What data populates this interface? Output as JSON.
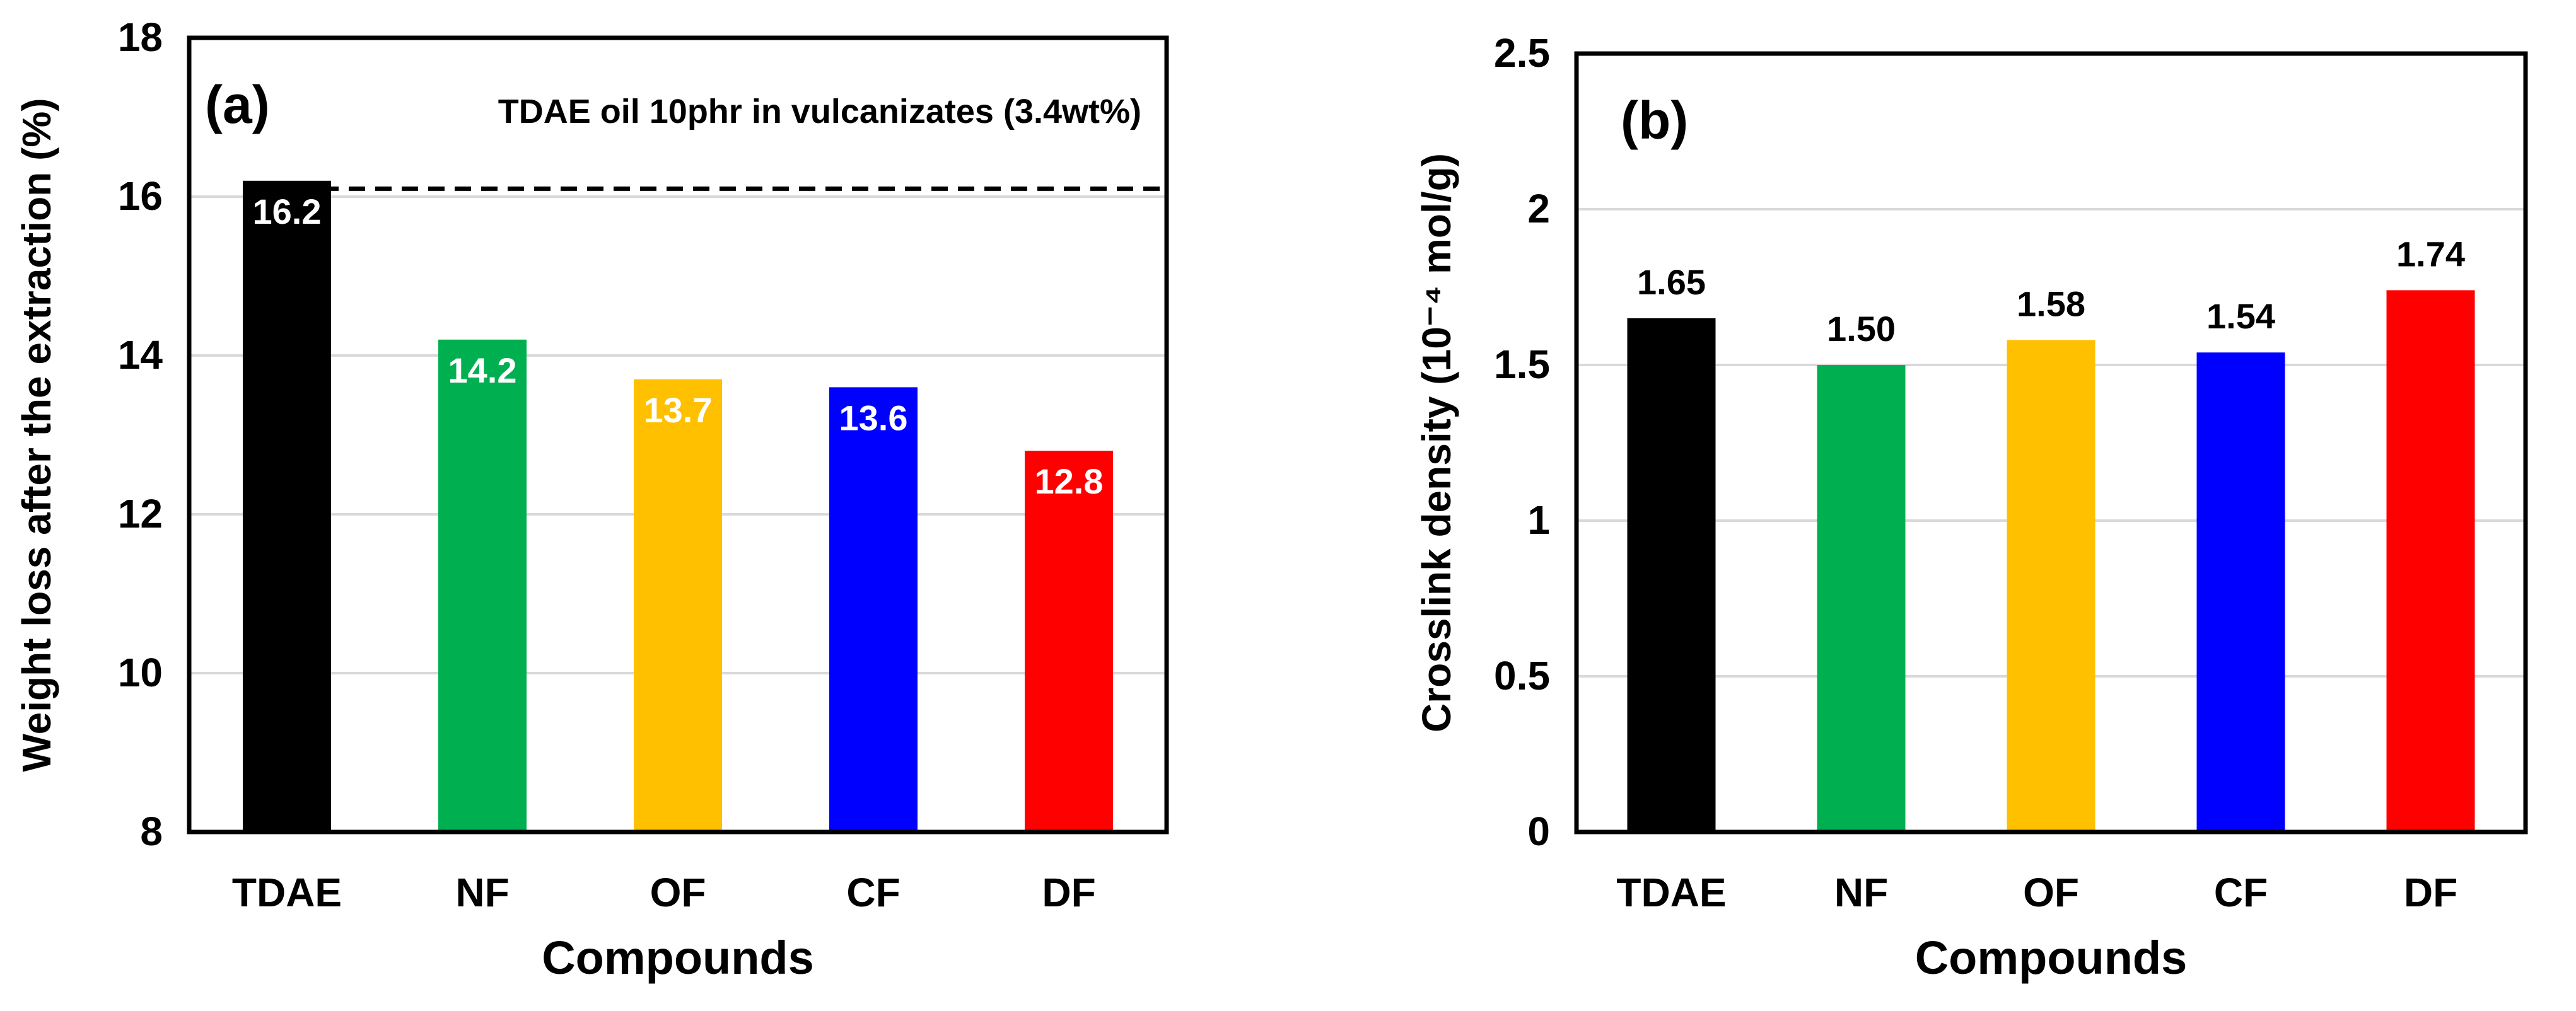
{
  "chart_data": [
    {
      "type": "bar",
      "panel_label": "(a)",
      "annotation": "TDAE oil 10phr in vulcanizates (3.4wt%)",
      "reference_line": {
        "value": 16.1,
        "style": "dashed"
      },
      "categories": [
        "TDAE",
        "NF",
        "OF",
        "CF",
        "DF"
      ],
      "values": [
        16.2,
        14.2,
        13.7,
        13.6,
        12.8
      ],
      "value_labels": [
        "16.2",
        "14.2",
        "13.7",
        "13.6",
        "12.8"
      ],
      "value_label_position": "inside-top",
      "colors": [
        "#000000",
        "#00b050",
        "#ffc000",
        "#0000ff",
        "#ff0000"
      ],
      "xlabel": "Compounds",
      "ylabel": "Weight loss after the extraction (%)",
      "ylim": [
        8,
        18
      ],
      "yticks": [
        8,
        10,
        12,
        14,
        16,
        18
      ],
      "ytick_labels": [
        "8",
        "10",
        "12",
        "14",
        "16",
        "18"
      ],
      "grid": "horizontal"
    },
    {
      "type": "bar",
      "panel_label": "(b)",
      "categories": [
        "TDAE",
        "NF",
        "OF",
        "CF",
        "DF"
      ],
      "values": [
        1.65,
        1.5,
        1.58,
        1.54,
        1.74
      ],
      "value_labels": [
        "1.65",
        "1.50",
        "1.58",
        "1.54",
        "1.74"
      ],
      "value_label_position": "above",
      "colors": [
        "#000000",
        "#00b050",
        "#ffc000",
        "#0000ff",
        "#ff0000"
      ],
      "xlabel": "Compounds",
      "ylabel": "Crosslink density (10⁻⁴ mol/g)",
      "ylim": [
        0,
        2.5
      ],
      "yticks": [
        0,
        0.5,
        1,
        1.5,
        2,
        2.5
      ],
      "ytick_labels": [
        "0",
        "0.5",
        "1",
        "1.5",
        "2",
        "2.5"
      ],
      "grid": "horizontal"
    }
  ]
}
